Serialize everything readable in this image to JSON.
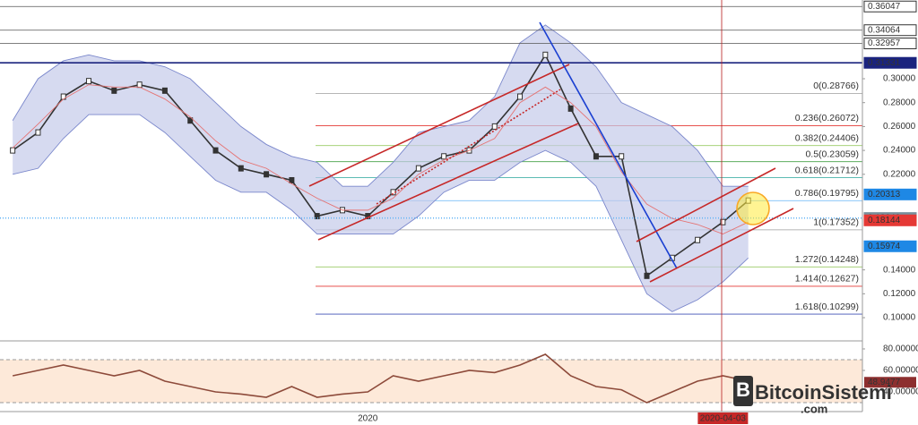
{
  "chart_data": [
    {
      "type": "line",
      "pane": "price",
      "categories": [
        null,
        null,
        null,
        null,
        null,
        null,
        null,
        null,
        null,
        null,
        null,
        null,
        null,
        null,
        "2020",
        null,
        null,
        null,
        null,
        null,
        null,
        null,
        null,
        null,
        null,
        null,
        null,
        null,
        "2020-04-03",
        null,
        null,
        null,
        null,
        null
      ],
      "highlight_category": 28,
      "series": [
        {
          "color": "#333333",
          "values": [
            0.24,
            0.255,
            0.285,
            0.298,
            0.29,
            0.295,
            0.29,
            0.265,
            0.24,
            0.225,
            0.22,
            0.215,
            0.185,
            0.19,
            0.185,
            0.205,
            0.225,
            0.235,
            0.24,
            0.26,
            0.285,
            0.32,
            0.275,
            0.235,
            0.235,
            0.135,
            0.15,
            0.165,
            0.18,
            0.198,
            null,
            null,
            null,
            null
          ]
        },
        {
          "color": "#7986cb",
          "values": [
            0.265,
            0.3,
            0.315,
            0.32,
            0.315,
            0.315,
            0.31,
            0.3,
            0.28,
            0.26,
            0.245,
            0.235,
            0.23,
            0.21,
            0.21,
            0.23,
            0.255,
            0.26,
            0.265,
            0.285,
            0.33,
            0.345,
            0.33,
            0.31,
            0.28,
            0.27,
            0.26,
            0.24,
            0.21,
            0.21,
            null,
            null,
            null,
            null
          ]
        },
        {
          "color": "#7986cb",
          "values": [
            0.22,
            0.225,
            0.25,
            0.27,
            0.27,
            0.27,
            0.255,
            0.235,
            0.215,
            0.205,
            0.205,
            0.19,
            0.17,
            0.17,
            0.17,
            0.17,
            0.185,
            0.205,
            0.215,
            0.215,
            0.23,
            0.24,
            0.23,
            0.21,
            0.165,
            0.12,
            0.105,
            0.115,
            0.13,
            0.15,
            null,
            null,
            null,
            null
          ]
        },
        {
          "color": "#e57373",
          "values": [
            0.242,
            0.262,
            0.283,
            0.295,
            0.293,
            0.293,
            0.283,
            0.268,
            0.248,
            0.232,
            0.225,
            0.212,
            0.2,
            0.19,
            0.19,
            0.2,
            0.22,
            0.232,
            0.24,
            0.25,
            0.28,
            0.293,
            0.28,
            0.26,
            0.222,
            0.195,
            0.183,
            0.178,
            0.17,
            0.18,
            null,
            null,
            null,
            null
          ]
        }
      ],
      "band_fill": "#c5cae9",
      "ylim": [
        0.0813,
        0.3659
      ],
      "yticks": [
        {
          "value": 0.1,
          "label": "0.10000"
        },
        {
          "value": 0.12,
          "label": "0.12000"
        },
        {
          "value": 0.14,
          "label": "0.14000"
        },
        {
          "value": 0.22,
          "label": "0.22000"
        },
        {
          "value": 0.24,
          "label": "0.24000"
        },
        {
          "value": 0.26,
          "label": "0.26000"
        },
        {
          "value": 0.28,
          "label": "0.28000"
        },
        {
          "value": 0.3,
          "label": "0.30000"
        }
      ],
      "fib_levels": [
        {
          "value": 0.28766,
          "label": "0(0.28766)",
          "color": "#9e9e9e"
        },
        {
          "value": 0.26072,
          "label": "0.236(0.26072)",
          "color": "#e53935"
        },
        {
          "value": 0.24406,
          "label": "0.382(0.24406)",
          "color": "#9ccc65"
        },
        {
          "value": 0.23059,
          "label": "0.5(0.23059)",
          "color": "#43a047"
        },
        {
          "value": 0.21712,
          "label": "0.618(0.21712)",
          "color": "#26a69a"
        },
        {
          "value": 0.19795,
          "label": "0.786(0.19795)",
          "color": "#64b5f6"
        },
        {
          "value": 0.17352,
          "label": "1(0.17352)",
          "color": "#9e9e9e"
        },
        {
          "value": 0.14248,
          "label": "1.272(0.14248)",
          "color": "#9ccc65"
        },
        {
          "value": 0.12627,
          "label": "1.414(0.12627)",
          "color": "#e53935"
        },
        {
          "value": 0.10299,
          "label": "1.618(0.10299)",
          "color": "#3f51b5"
        }
      ],
      "price_marks": [
        {
          "value": 0.36047,
          "color": "#ffffff",
          "text_color": "#000000",
          "line": "#555555"
        },
        {
          "value": 0.34064,
          "color": "#ffffff",
          "text_color": "#000000",
          "line": "#555555"
        },
        {
          "value": 0.32957,
          "color": "#ffffff",
          "text_color": "#000000",
          "line": "#555555"
        },
        {
          "value": 0.31331,
          "color": "#1a237e",
          "text_color": "#ffffff",
          "line": "#1a237e"
        },
        {
          "value": 0.20313,
          "color": "#1e88e5",
          "text_color": "#ffffff",
          "line": null
        },
        {
          "value": 0.18342,
          "color": "#78909c",
          "text_color": "#ffffff",
          "line": "#64b5f6"
        },
        {
          "value": 0.18144,
          "color": "#e53935",
          "text_color": "#ffffff",
          "line": null
        },
        {
          "value": 0.15974,
          "color": "#1e88e5",
          "text_color": "#ffffff",
          "line": null
        }
      ]
    },
    {
      "type": "line",
      "pane": "rsi",
      "series": [
        {
          "color": "#8d4a3a",
          "values": [
            55,
            60,
            65,
            60,
            55,
            60,
            50,
            45,
            40,
            38,
            35,
            45,
            35,
            38,
            40,
            55,
            50,
            55,
            60,
            58,
            65,
            75,
            55,
            45,
            42,
            30,
            40,
            50,
            55,
            50,
            null,
            null,
            null,
            null
          ]
        }
      ],
      "ylim": [
        21.7,
        85.8
      ],
      "yticks": [
        {
          "value": 80,
          "label": "80.00000"
        },
        {
          "value": 60,
          "label": "60.00000"
        },
        {
          "value": 40,
          "label": "40.00000"
        }
      ],
      "band": [
        30,
        70
      ],
      "band_fill": "#fde9d9",
      "last_value": 48.9477
    }
  ],
  "watermark": {
    "name": "BitcoinSistemi",
    "domain": ".com"
  }
}
